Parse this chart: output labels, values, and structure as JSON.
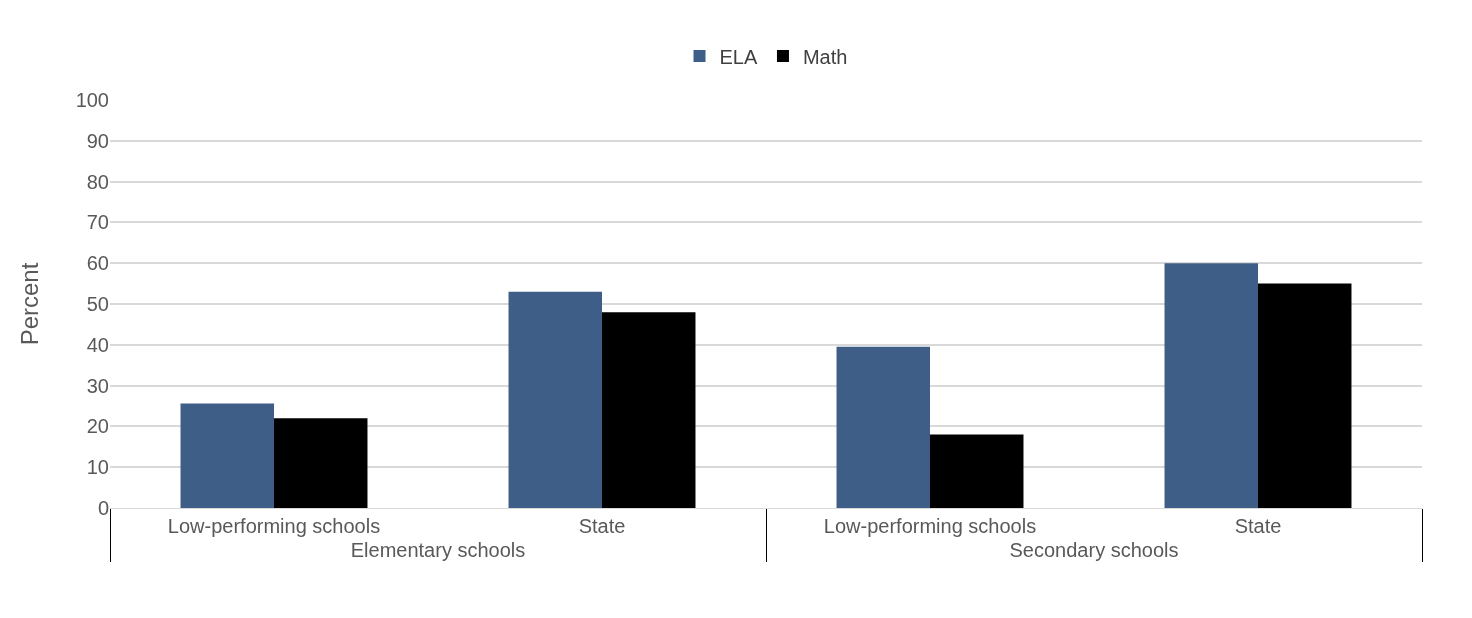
{
  "chart_data": {
    "type": "bar",
    "ylabel": "Percent",
    "categories": [
      "Low-performing schools",
      "State",
      "Low-performing schools",
      "State"
    ],
    "series": [
      {
        "name": "ELA",
        "color": "#3f5e87",
        "values": [
          25.6,
          53,
          39.5,
          60
        ]
      },
      {
        "name": "Math",
        "color": "#000000",
        "values": [
          22,
          48,
          18,
          55
        ]
      }
    ],
    "annotations": [
      "Elementary schools",
      "Secondary schools"
    ],
    "ylim": [
      0,
      100
    ],
    "yticks": [
      0,
      10,
      20,
      30,
      40,
      50,
      60,
      70,
      80,
      90,
      100
    ],
    "grid": "y",
    "legend": "top"
  }
}
